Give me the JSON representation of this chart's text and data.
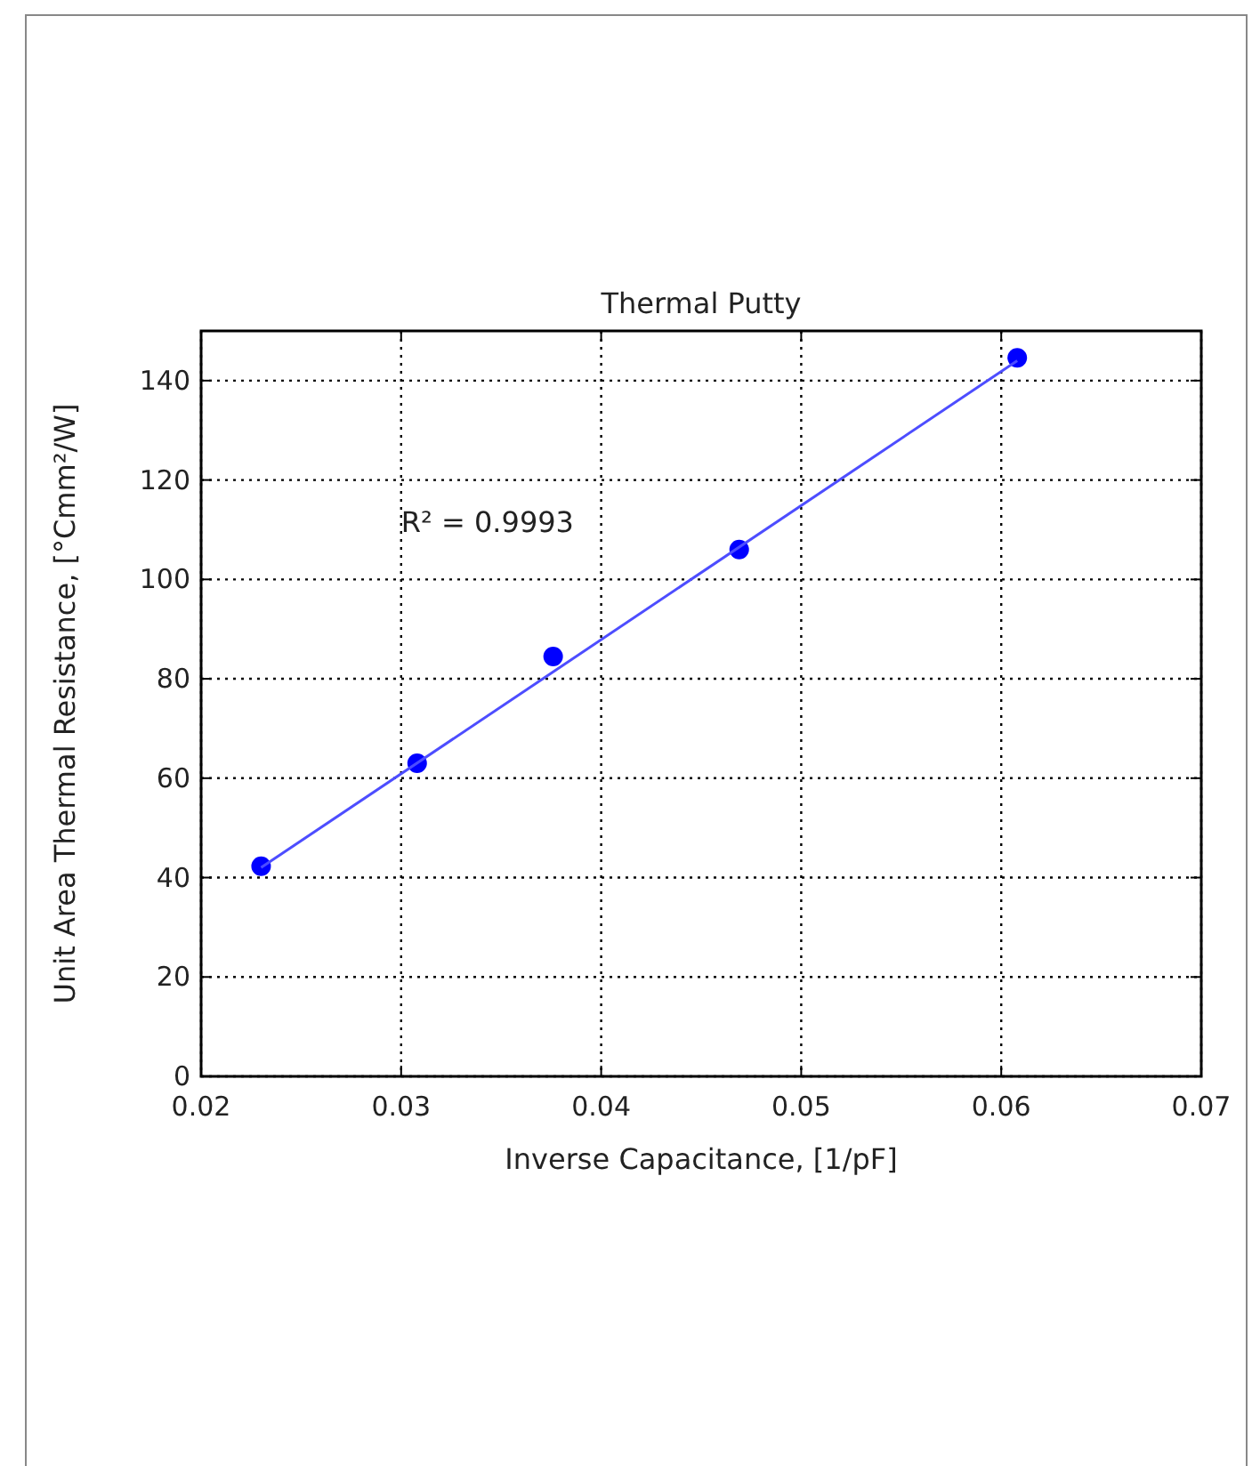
{
  "chart_data": {
    "type": "scatter",
    "title": "Thermal Putty",
    "xlabel": "Inverse Capacitance, [1/pF]",
    "ylabel": "Unit Area Thermal Resistance, [°Cmm²/W]",
    "xlim": [
      0.02,
      0.07
    ],
    "xticks": [
      0.02,
      0.03,
      0.04,
      0.05,
      0.06,
      0.07
    ],
    "ylim": [
      0,
      150
    ],
    "yticks": [
      0,
      20,
      40,
      60,
      80,
      100,
      120,
      140
    ],
    "grid": true,
    "annotations": [
      "R² = 0.9993"
    ],
    "series": [
      {
        "color": "#0000ff",
        "marker": "circle",
        "x": [
          0.023,
          0.0308,
          0.0376,
          0.0469,
          0.0608
        ],
        "values": [
          42.3,
          63.0,
          84.5,
          106.0,
          144.6
        ]
      },
      {
        "type": "line",
        "color": "#4d4dff",
        "marker": "none",
        "line_style": "solid",
        "x": [
          0.023,
          0.0608
        ],
        "values": [
          42,
          144
        ]
      }
    ]
  }
}
